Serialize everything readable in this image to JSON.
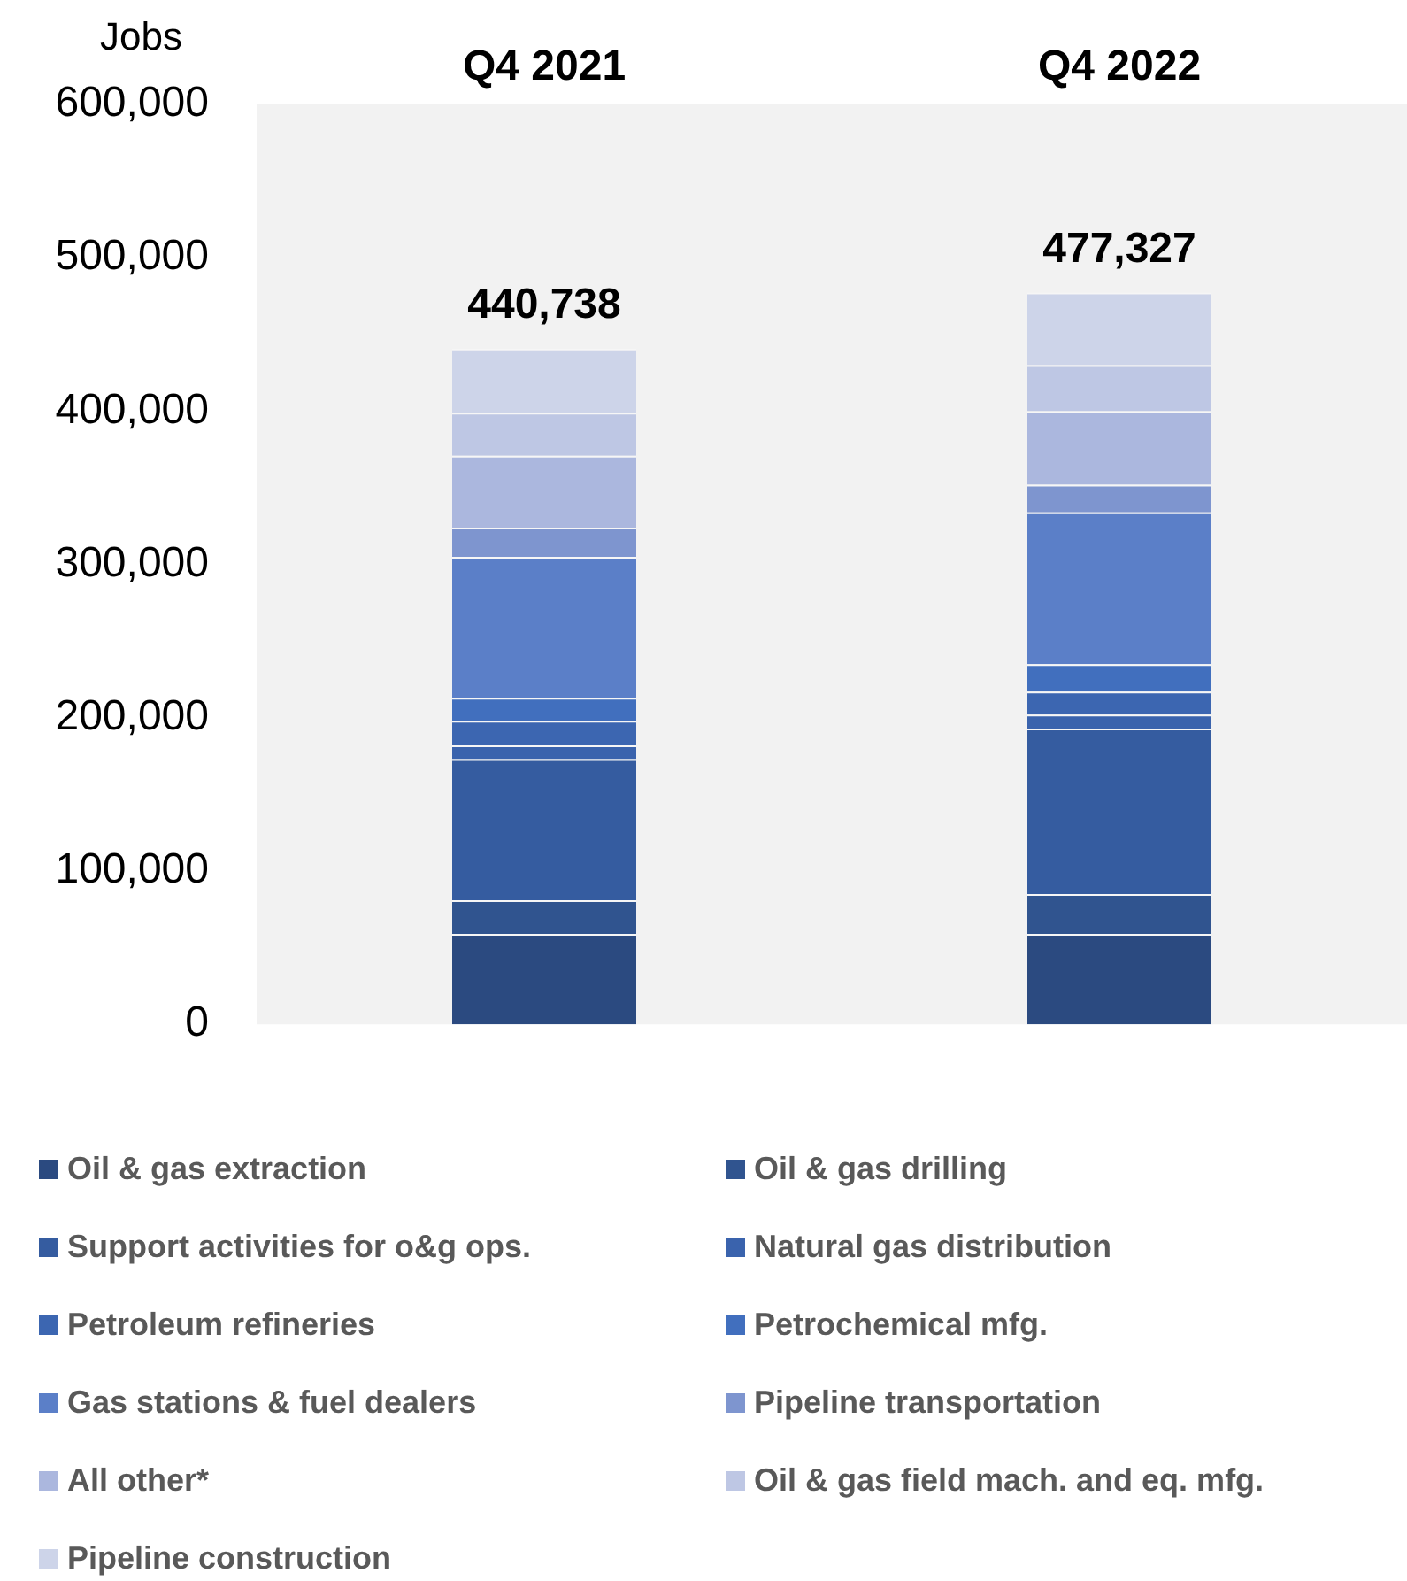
{
  "chart_data": {
    "type": "bar",
    "stacked": true,
    "ylabel": "Jobs",
    "categories": [
      "Q4 2021",
      "Q4 2022"
    ],
    "ylim": [
      0,
      600000
    ],
    "yticks": [
      {
        "value": 0,
        "label": "0"
      },
      {
        "value": 100000,
        "label": "100,000"
      },
      {
        "value": 200000,
        "label": "200,000"
      },
      {
        "value": 300000,
        "label": "300,000"
      },
      {
        "value": 400000,
        "label": "400,000"
      },
      {
        "value": 500000,
        "label": "500,000"
      },
      {
        "value": 600000,
        "label": "600,000"
      }
    ],
    "grid": false,
    "legend": "bottom",
    "totals": [
      "440,738",
      "477,327"
    ],
    "series": [
      {
        "name": "Oil & gas extraction",
        "color": "#2b4a80",
        "values": [
          59000,
          59000
        ]
      },
      {
        "name": "Oil & gas drilling",
        "color": "#30548f",
        "values": [
          22000,
          26000
        ]
      },
      {
        "name": "Support activities for o&g ops.",
        "color": "#355ca0",
        "values": [
          92000,
          108000
        ]
      },
      {
        "name": "Natural gas distribution",
        "color": "#3a63ad",
        "values": [
          9000,
          9000
        ]
      },
      {
        "name": "Petroleum refineries",
        "color": "#3c66b1",
        "values": [
          16000,
          15000
        ]
      },
      {
        "name": "Petrochemical mfg.",
        "color": "#416fbe",
        "values": [
          15000,
          18000
        ]
      },
      {
        "name": "Gas stations & fuel dealers",
        "color": "#5b7fc8",
        "values": [
          92000,
          99000
        ]
      },
      {
        "name": "Pipeline transportation",
        "color": "#7e95cf",
        "values": [
          19000,
          18000
        ]
      },
      {
        "name": "All other*",
        "color": "#abb7de",
        "values": [
          47000,
          48000
        ]
      },
      {
        "name": "Oil & gas field mach. and eq. mfg.",
        "color": "#bec7e4",
        "values": [
          28000,
          30000
        ]
      },
      {
        "name": "Pipeline construction",
        "color": "#cdd4e9",
        "values": [
          41738,
          47327
        ]
      }
    ]
  }
}
